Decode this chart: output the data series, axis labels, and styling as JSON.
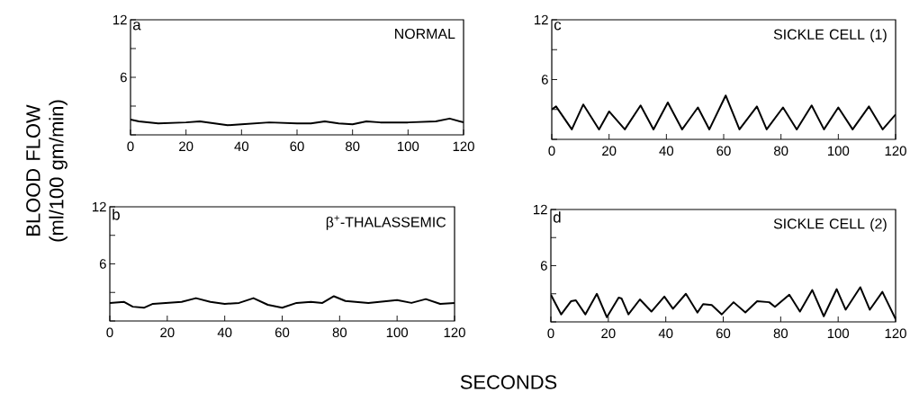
{
  "chart_data": [
    {
      "type": "line",
      "title": "NORMAL",
      "annotations": [
        "a"
      ],
      "ylabel": "BLOOD FLOW (ml/100 gm/min)",
      "x": [
        0,
        3,
        10,
        20,
        25,
        30,
        35,
        40,
        50,
        60,
        65,
        70,
        75,
        80,
        85,
        90,
        100,
        110,
        115,
        120
      ],
      "series": [
        {
          "color": "#000000",
          "values": [
            1.6,
            1.4,
            1.2,
            1.3,
            1.4,
            1.2,
            1.0,
            1.1,
            1.3,
            1.2,
            1.2,
            1.4,
            1.2,
            1.1,
            1.4,
            1.3,
            1.3,
            1.4,
            1.7,
            1.3
          ]
        }
      ],
      "xlim": [
        0,
        120
      ],
      "ylim": [
        0,
        12
      ],
      "xticks": [
        0,
        20,
        40,
        60,
        80,
        100,
        120
      ],
      "yticks": [
        {
          "value": 0,
          "label": null
        },
        {
          "value": 3,
          "label": null
        },
        6,
        {
          "value": 9,
          "label": null
        },
        12
      ]
    },
    {
      "type": "line",
      "title": "SICKLE CELL (1)",
      "annotations": [
        "c"
      ],
      "x": [
        0,
        1.5,
        7,
        11,
        16.5,
        20,
        25.5,
        31,
        35.5,
        40.5,
        45.5,
        51,
        55,
        60.7,
        65.5,
        71.6,
        75,
        80.7,
        85.5,
        90.7,
        95,
        100,
        105,
        110.7,
        115.5,
        120
      ],
      "series": [
        {
          "color": "#000000",
          "values": [
            3.0,
            3.3,
            1.0,
            3.5,
            1.0,
            2.8,
            1.0,
            3.4,
            1.0,
            3.7,
            1.0,
            3.2,
            1.0,
            4.4,
            1.0,
            3.3,
            1.0,
            3.2,
            1.0,
            3.4,
            1.0,
            3.2,
            1.0,
            3.3,
            1.0,
            2.5
          ]
        }
      ],
      "xlim": [
        0,
        120
      ],
      "ylim": [
        0,
        12
      ],
      "xticks": [
        0,
        20,
        40,
        60,
        80,
        100,
        120
      ],
      "yticks": [
        {
          "value": 0,
          "label": null
        },
        {
          "value": 3,
          "label": null
        },
        6,
        {
          "value": 9,
          "label": null
        },
        12
      ]
    },
    {
      "type": "line",
      "title": "β$^{+}$-THALASSEMIC",
      "annotations": [
        "b"
      ],
      "xlabel": "SECONDS",
      "x": [
        0,
        5,
        8,
        12,
        15,
        20,
        25,
        30,
        35,
        40,
        45,
        50,
        55,
        60,
        65,
        70,
        74,
        78,
        82,
        90,
        100,
        105,
        110,
        115,
        120
      ],
      "series": [
        {
          "color": "#000000",
          "values": [
            1.9,
            2.0,
            1.5,
            1.4,
            1.8,
            1.9,
            2.0,
            2.4,
            2.0,
            1.8,
            1.9,
            2.4,
            1.7,
            1.4,
            1.9,
            2.0,
            1.9,
            2.6,
            2.1,
            1.9,
            2.2,
            1.9,
            2.3,
            1.8,
            1.9
          ]
        }
      ],
      "xlim": [
        0,
        120
      ],
      "ylim": [
        0,
        12
      ],
      "xticks": [
        0,
        20,
        40,
        60,
        80,
        100,
        120
      ],
      "yticks": [
        {
          "value": 0,
          "label": null
        },
        {
          "value": 3,
          "label": null
        },
        6,
        {
          "value": 9,
          "label": null
        },
        12
      ]
    },
    {
      "type": "line",
      "title": "SICKLE CELL (2)",
      "annotations": [
        "d"
      ],
      "x": [
        0,
        3.6,
        7,
        8.7,
        12,
        16,
        19.5,
        23.6,
        24.6,
        27,
        31,
        35,
        39.5,
        42.5,
        47,
        51,
        53,
        56,
        59.5,
        63.6,
        67.7,
        71.8,
        76,
        78,
        83,
        86.7,
        91,
        95,
        99.5,
        102.6,
        107.7,
        111,
        115.4,
        120
      ],
      "series": [
        {
          "color": "#000000",
          "values": [
            2.9,
            0.8,
            2.2,
            2.3,
            0.8,
            3.0,
            0.5,
            2.6,
            2.5,
            0.8,
            2.4,
            1.1,
            2.7,
            1.4,
            3.0,
            1.0,
            1.9,
            1.8,
            0.8,
            2.1,
            1.0,
            2.2,
            2.1,
            1.6,
            2.9,
            1.1,
            3.4,
            0.6,
            3.5,
            1.3,
            3.7,
            1.3,
            3.2,
            0.3
          ]
        }
      ],
      "xlim": [
        0,
        120
      ],
      "ylim": [
        0,
        12
      ],
      "xticks": [
        0,
        20,
        40,
        60,
        80,
        100,
        120
      ],
      "yticks": [
        {
          "value": 0,
          "label": null
        },
        {
          "value": 3,
          "label": null
        },
        6,
        {
          "value": 9,
          "label": null
        },
        12
      ]
    }
  ]
}
